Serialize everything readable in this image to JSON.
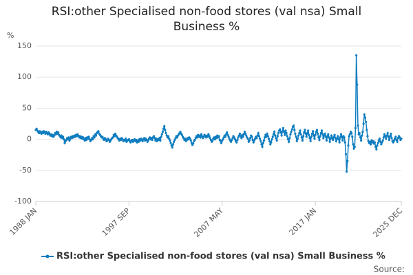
{
  "chart_data": {
    "type": "line",
    "title": "RSI:other Specialised non-food stores (val nsa) Small Business %",
    "y_label": "%",
    "source": "Source:",
    "categories": [
      "1988 JAN",
      null,
      null,
      null,
      null,
      null,
      null,
      null,
      null,
      null,
      null,
      null,
      null,
      null,
      null,
      null,
      null,
      null,
      null,
      null,
      null,
      null,
      null,
      null,
      null,
      null,
      null,
      null,
      null,
      null,
      null,
      null,
      null,
      null,
      null,
      null,
      null,
      null,
      null,
      null,
      null,
      null,
      null,
      null,
      null,
      null,
      null,
      null,
      null,
      null,
      null,
      null,
      null,
      null,
      null,
      null,
      null,
      null,
      null,
      null,
      null,
      null,
      null,
      null,
      null,
      null,
      null,
      null,
      null,
      null,
      null,
      null,
      null,
      null,
      null,
      null,
      null,
      null,
      null,
      null,
      null,
      null,
      null,
      null,
      null,
      null,
      null,
      null,
      null,
      null,
      null,
      null,
      null,
      null,
      null,
      null,
      null,
      null,
      null,
      null,
      null,
      null,
      null,
      null,
      null,
      null,
      null,
      null,
      null,
      null,
      null,
      null,
      null,
      null,
      null,
      null,
      "1997 SEP",
      null,
      null,
      null,
      null,
      null,
      null,
      null,
      null,
      null,
      null,
      null,
      null,
      null,
      null,
      null,
      null,
      null,
      null,
      null,
      null,
      null,
      null,
      null,
      null,
      null,
      null,
      null,
      null,
      null,
      null,
      null,
      null,
      null,
      null,
      null,
      null,
      null,
      null,
      null,
      null,
      null,
      null,
      null,
      null,
      null,
      null,
      null,
      null,
      null,
      null,
      null,
      null,
      null,
      null,
      null,
      null,
      null,
      null,
      null,
      null,
      null,
      null,
      null,
      null,
      null,
      null,
      null,
      null,
      null,
      null,
      null,
      null,
      null,
      null,
      null,
      null,
      null,
      null,
      null,
      null,
      null,
      null,
      null,
      null,
      null,
      null,
      null,
      null,
      null,
      null,
      null,
      null,
      null,
      null,
      null,
      null,
      null,
      null,
      null,
      null,
      null,
      null,
      null,
      null,
      null,
      null,
      null,
      null,
      null,
      null,
      null,
      null,
      null,
      null,
      null,
      "2007 MAY",
      null,
      null,
      null,
      null,
      null,
      null,
      null,
      null,
      null,
      null,
      null,
      null,
      null,
      null,
      null,
      null,
      null,
      null,
      null,
      null,
      null,
      null,
      null,
      null,
      null,
      null,
      null,
      null,
      null,
      null,
      null,
      null,
      null,
      null,
      null,
      null,
      null,
      null,
      null,
      null,
      null,
      null,
      null,
      null,
      null,
      null,
      null,
      null,
      null,
      null,
      null,
      null,
      null,
      null,
      null,
      null,
      null,
      null,
      null,
      null,
      null,
      null,
      null,
      null,
      null,
      null,
      null,
      null,
      null,
      null,
      null,
      null,
      null,
      null,
      null,
      null,
      null,
      null,
      null,
      null,
      null,
      null,
      null,
      null,
      null,
      null,
      null,
      null,
      null,
      null,
      null,
      null,
      null,
      null,
      null,
      null,
      null,
      null,
      null,
      null,
      null,
      null,
      null,
      null,
      null,
      null,
      null,
      null,
      null,
      null,
      null,
      null,
      null,
      null,
      null,
      "2017 JAN",
      null,
      null,
      null,
      null,
      null,
      null,
      null,
      null,
      null,
      null,
      null,
      null,
      null,
      null,
      null,
      null,
      null,
      null,
      null,
      null,
      null,
      null,
      null,
      null,
      null,
      null,
      null,
      null,
      null,
      null,
      null,
      null,
      null,
      null,
      null,
      null,
      null,
      null,
      null,
      null,
      null,
      null,
      null,
      null,
      null,
      null,
      null,
      null,
      null,
      null,
      null,
      null,
      null,
      null,
      null,
      null,
      null,
      null,
      null,
      null,
      null,
      null,
      null,
      null,
      null,
      null,
      null,
      null,
      null,
      null,
      null,
      null,
      null,
      null,
      null,
      null,
      null,
      null,
      null,
      null,
      null,
      null,
      null,
      null,
      null,
      null,
      null,
      null,
      null,
      null,
      null,
      null,
      null,
      null,
      null,
      null,
      null,
      null,
      null,
      null,
      null,
      null,
      null,
      null,
      null,
      null,
      "2025 DEC"
    ],
    "series": [
      {
        "name": "RSI:other Specialised non-food stores (val nsa) Small Business %",
        "color": "#0f7dc0",
        "values": [
          15,
          17,
          14,
          12,
          10,
          13,
          11,
          9,
          12,
          10,
          13,
          11,
          9,
          12,
          10,
          8,
          11,
          9,
          6,
          8,
          5,
          7,
          4,
          6,
          10,
          8,
          12,
          9,
          11,
          7,
          5,
          3,
          6,
          2,
          4,
          0,
          -6,
          -3,
          -1,
          2,
          0,
          3,
          -2,
          1,
          4,
          2,
          5,
          3,
          6,
          4,
          7,
          5,
          8,
          6,
          3,
          5,
          2,
          4,
          1,
          3,
          0,
          -2,
          2,
          -1,
          3,
          1,
          4,
          0,
          -3,
          -1,
          2,
          0,
          5,
          3,
          8,
          6,
          10,
          12,
          13,
          9,
          7,
          5,
          3,
          4,
          1,
          -1,
          2,
          0,
          -3,
          -2,
          1,
          -1,
          -4,
          -2,
          0,
          2,
          3,
          7,
          5,
          9,
          6,
          4,
          2,
          0,
          -2,
          1,
          -1,
          2,
          0,
          -3,
          -1,
          -2,
          1,
          -4,
          -2,
          -1,
          0,
          -3,
          -5,
          -2,
          -1,
          -4,
          -2,
          0,
          -3,
          -1,
          -5,
          -2,
          -4,
          0,
          -2,
          1,
          -1,
          -3,
          0,
          2,
          -2,
          1,
          -1,
          -4,
          -2,
          1,
          3,
          0,
          2,
          -1,
          3,
          5,
          2,
          -2,
          1,
          -3,
          0,
          -1,
          2,
          -2,
          4,
          8,
          12,
          17,
          21,
          15,
          10,
          6,
          3,
          5,
          1,
          -2,
          -6,
          -10,
          -13,
          -8,
          -4,
          -1,
          2,
          5,
          3,
          6,
          8,
          10,
          12,
          9,
          7,
          4,
          2,
          -1,
          1,
          -3,
          -1,
          2,
          0,
          3,
          1,
          -2,
          -6,
          -9,
          -7,
          -3,
          -1,
          2,
          5,
          3,
          7,
          4,
          6,
          3,
          8,
          5,
          2,
          4,
          7,
          5,
          3,
          6,
          4,
          8,
          5,
          2,
          -1,
          -4,
          -2,
          1,
          3,
          0,
          4,
          2,
          6,
          3,
          5,
          -1,
          -3,
          -6,
          -2,
          0,
          3,
          6,
          4,
          8,
          11,
          7,
          4,
          1,
          -2,
          -4,
          -1,
          2,
          5,
          3,
          0,
          -3,
          -5,
          -1,
          3,
          6,
          9,
          5,
          2,
          7,
          4,
          8,
          12,
          9,
          6,
          3,
          1,
          -4,
          -2,
          2,
          6,
          4,
          -1,
          -5,
          -2,
          1,
          4,
          2,
          6,
          10,
          5,
          1,
          -3,
          -8,
          -12,
          -6,
          -2,
          3,
          7,
          4,
          9,
          5,
          1,
          -3,
          -8,
          -5,
          0,
          4,
          8,
          12,
          6,
          2,
          -2,
          5,
          10,
          14,
          16,
          11,
          6,
          13,
          18,
          12,
          7,
          14,
          10,
          5,
          0,
          -4,
          2,
          8,
          12,
          16,
          20,
          22,
          15,
          9,
          4,
          -3,
          1,
          6,
          10,
          14,
          8,
          3,
          -2,
          5,
          11,
          15,
          9,
          4,
          10,
          14,
          7,
          2,
          -3,
          4,
          9,
          13,
          6,
          1,
          7,
          12,
          15,
          9,
          3,
          -1,
          5,
          10,
          14,
          8,
          2,
          6,
          9,
          4,
          -2,
          5,
          8,
          3,
          -4,
          1,
          6,
          2,
          -1,
          4,
          7,
          2,
          -3,
          1,
          5,
          0,
          -5,
          3,
          8,
          4,
          -2,
          5,
          3,
          -5,
          -24,
          -52,
          -35,
          -10,
          5,
          8,
          12,
          10,
          4,
          -8,
          -15,
          -12,
          18,
          135,
          88,
          22,
          8,
          10,
          3,
          -2,
          6,
          12,
          25,
          40,
          35,
          28,
          15,
          5,
          -3,
          -6,
          -4,
          -8,
          -2,
          -5,
          -3,
          -7,
          -5,
          -12,
          -16,
          -10,
          -6,
          -2,
          1,
          -4,
          -8,
          -5,
          -2,
          3,
          8,
          5,
          1,
          6,
          10,
          4,
          -1,
          5,
          9,
          2,
          -3,
          -5,
          -2,
          1,
          4,
          -1,
          -4,
          2,
          5,
          3,
          -1,
          1
        ]
      }
    ],
    "ylim": [
      -100,
      150
    ],
    "yticks": [
      -100,
      -50,
      0,
      50,
      100,
      150
    ],
    "grid": true,
    "legend": "bottom"
  }
}
